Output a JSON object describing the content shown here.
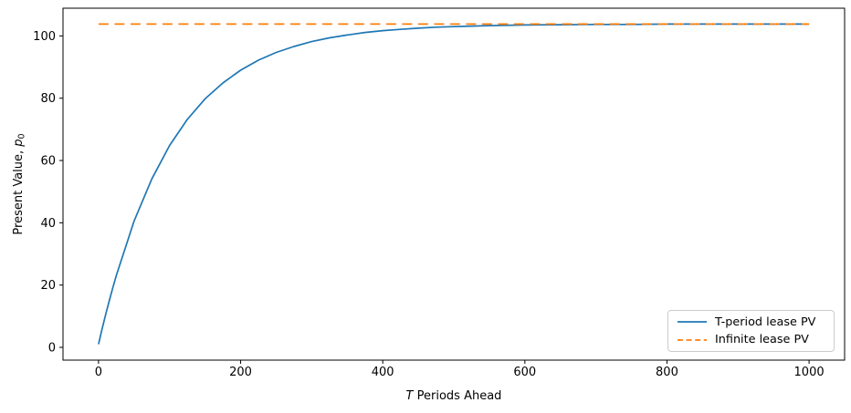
{
  "chart_data": {
    "type": "line",
    "title": "",
    "xlabel": "T Periods Ahead",
    "xlabel_parts": [
      {
        "t": "T",
        "style": "italic"
      },
      {
        "t": " Periods Ahead",
        "style": "normal"
      }
    ],
    "ylabel": "Present Value, p0",
    "ylabel_parts": [
      {
        "t": "Present Value, ",
        "style": "normal"
      },
      {
        "t": "p",
        "style": "italic"
      },
      {
        "t": "0",
        "style": "sub"
      }
    ],
    "x_ticks": [
      0,
      200,
      400,
      600,
      800,
      1000
    ],
    "y_ticks": [
      0,
      20,
      40,
      60,
      80,
      100
    ],
    "xlim": [
      -50,
      1050
    ],
    "ylim": [
      -4.1,
      108.9
    ],
    "grid": false,
    "background": "#ffffff",
    "axis_color": "#000000",
    "legend": {
      "position": "lower right",
      "border_color": "#cccccc",
      "entries": [
        "T-period lease PV",
        "Infinite lease PV"
      ]
    },
    "series": [
      {
        "name": "T-period lease PV",
        "color": "#1f77b4",
        "style": "solid",
        "x": [
          0,
          5,
          10,
          15,
          20,
          25,
          50,
          75,
          100,
          125,
          150,
          175,
          200,
          225,
          250,
          275,
          300,
          325,
          350,
          375,
          400,
          425,
          450,
          475,
          500,
          550,
          600,
          650,
          700,
          750,
          800,
          850,
          900,
          950,
          1000
        ],
        "y": [
          1.0,
          5.9,
          10.5,
          14.9,
          19.1,
          23.1,
          40.5,
          54.1,
          64.8,
          73.2,
          79.8,
          84.9,
          89.0,
          92.2,
          94.7,
          96.6,
          98.2,
          99.4,
          100.3,
          101.1,
          101.7,
          102.1,
          102.5,
          102.8,
          103.0,
          103.3,
          103.5,
          103.6,
          103.7,
          103.7,
          103.8,
          103.8,
          103.8,
          103.8,
          103.8
        ]
      },
      {
        "name": "Infinite lease PV",
        "color": "#ff7f0e",
        "style": "dashed",
        "x": [
          0,
          1000
        ],
        "y": [
          103.8,
          103.8
        ]
      }
    ]
  }
}
